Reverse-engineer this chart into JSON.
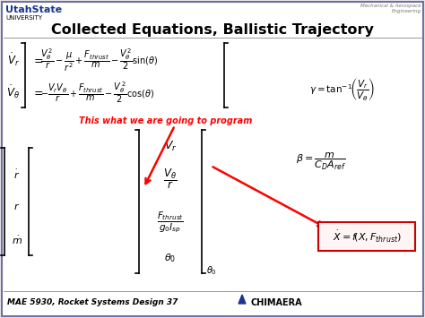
{
  "bg_color": "#e8e8e8",
  "slide_bg": "#ffffff",
  "border_color": "#7070a0",
  "usu_bold": "UtahState",
  "usu_plain": "UNIVERSITY",
  "usu_color": "#1a3490",
  "mech_aero": "Mechanical & Aerospace\nEngineering",
  "title": "Collected Equations, Ballistic Trajectory",
  "red_note": "This what we are going to program",
  "footer": "MAE 5930, Rocket Systems Design 37",
  "chimaera": "CHIMAERA",
  "eq_vr_lhs": "$\\dot{V}_r$",
  "eq_vt_lhs": "$\\dot{V}_\\theta$",
  "eq1_part1": "$\\dfrac{V_{\\theta}^{\\,2}}{r}$",
  "eq1_part2": "$-\\dfrac{\\mu}{r^2}$",
  "eq1_part3": "$+\\dfrac{F_{thrust}}{m}$",
  "eq1_part4": "$-\\dfrac{V_{\\theta}^{\\,2}}{2}\\sin(\\theta)$",
  "eq2_part1": "$\\dfrac{V_r V_{\\theta}}{r}$",
  "eq2_part2": "$-\\dfrac{F_{thrust}}{m}$",
  "eq2_part3": "$-\\dfrac{V_{\\theta}^{\\,2}}{2}\\cos(\\theta)$",
  "state_vr": "$V_r$",
  "state_vt_r": "$\\dfrac{V_{\\theta}}{r}$",
  "state_fthrust": "$\\dfrac{F_{thrust}}{g_0 I_{sp}}$",
  "state_theta0": "$\\theta_0$",
  "lhs_rdot": "$\\dot{r}$",
  "lhs_r": "$r$",
  "lhs_mdot": "$\\dot{m}$",
  "gamma_eq_line1": "$\\gamma = \\tan^{-1}$",
  "gamma_eq_line2": "$\\left(\\dfrac{V_r}{V_{\\theta}}\\right)$",
  "beta_eq": "$\\beta = \\dfrac{m}{C_D A_{ref}}$",
  "box_eq": "$\\dot{X} = f\\left(X, F_{thrust}\\right)$",
  "title_fs": 11.5,
  "eq_fs": 7.0,
  "state_fs": 8.0,
  "lhs_fs": 8.5
}
